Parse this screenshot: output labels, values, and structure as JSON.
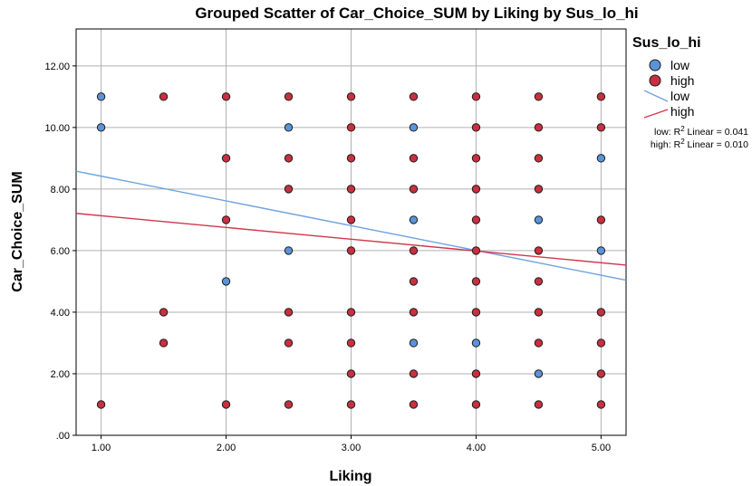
{
  "chart_data": {
    "type": "scatter",
    "title": "Grouped Scatter of Car_Choice_SUM by Liking by Sus_lo_hi",
    "xlabel": "Liking",
    "ylabel": "Car_Choice_SUM",
    "xlim": [
      0.8,
      5.2
    ],
    "ylim": [
      0,
      13.2
    ],
    "x_ticks": [
      "1.00",
      "2.00",
      "3.00",
      "4.00",
      "5.00"
    ],
    "y_ticks": [
      ".00",
      "2.00",
      "4.00",
      "6.00",
      "8.00",
      "10.00",
      "12.00"
    ],
    "grid": true,
    "legend": {
      "title": "Sus_lo_hi",
      "placement": "right",
      "markers": [
        "low",
        "high"
      ],
      "lines": [
        "low",
        "high"
      ]
    },
    "r2_labels": [
      {
        "prefix": "low: R",
        "suffix": " Linear = 0.041"
      },
      {
        "prefix": "high: R",
        "suffix": " Linear = 0.010"
      }
    ],
    "r2_superscript": "2",
    "colors": {
      "low": "#5b93d9",
      "high": "#c8303f",
      "low_line": "#6ea2e0",
      "high_line": "#d0364a"
    },
    "series": [
      {
        "name": "low",
        "points": [
          [
            1.0,
            11
          ],
          [
            1.0,
            10
          ],
          [
            2.0,
            5
          ],
          [
            2.5,
            10
          ],
          [
            2.5,
            6
          ],
          [
            3.5,
            10
          ],
          [
            3.5,
            7
          ],
          [
            3.5,
            3
          ],
          [
            4.0,
            3
          ],
          [
            4.5,
            7
          ],
          [
            4.5,
            2
          ],
          [
            5.0,
            9
          ],
          [
            5.0,
            6
          ]
        ],
        "fit": {
          "x": [
            0.8,
            5.2
          ],
          "y": [
            8.58,
            5.04
          ]
        }
      },
      {
        "name": "high",
        "points": [
          [
            1.0,
            1
          ],
          [
            1.5,
            11
          ],
          [
            1.5,
            4
          ],
          [
            1.5,
            3
          ],
          [
            2.0,
            11
          ],
          [
            2.0,
            9
          ],
          [
            2.0,
            7
          ],
          [
            2.0,
            1
          ],
          [
            2.5,
            11
          ],
          [
            2.5,
            9
          ],
          [
            2.5,
            8
          ],
          [
            2.5,
            4
          ],
          [
            2.5,
            3
          ],
          [
            2.5,
            1
          ],
          [
            3.0,
            11
          ],
          [
            3.0,
            10
          ],
          [
            3.0,
            9
          ],
          [
            3.0,
            8
          ],
          [
            3.0,
            7
          ],
          [
            3.0,
            6
          ],
          [
            3.0,
            4
          ],
          [
            3.0,
            3
          ],
          [
            3.0,
            2
          ],
          [
            3.0,
            1
          ],
          [
            3.5,
            11
          ],
          [
            3.5,
            9
          ],
          [
            3.5,
            8
          ],
          [
            3.5,
            6
          ],
          [
            3.5,
            5
          ],
          [
            3.5,
            4
          ],
          [
            3.5,
            2
          ],
          [
            3.5,
            1
          ],
          [
            4.0,
            11
          ],
          [
            4.0,
            10
          ],
          [
            4.0,
            9
          ],
          [
            4.0,
            8
          ],
          [
            4.0,
            7
          ],
          [
            4.0,
            6
          ],
          [
            4.0,
            5
          ],
          [
            4.0,
            4
          ],
          [
            4.0,
            2
          ],
          [
            4.0,
            1
          ],
          [
            4.5,
            11
          ],
          [
            4.5,
            10
          ],
          [
            4.5,
            9
          ],
          [
            4.5,
            8
          ],
          [
            4.5,
            6
          ],
          [
            4.5,
            5
          ],
          [
            4.5,
            4
          ],
          [
            4.5,
            3
          ],
          [
            4.5,
            1
          ],
          [
            5.0,
            11
          ],
          [
            5.0,
            10
          ],
          [
            5.0,
            7
          ],
          [
            5.0,
            4
          ],
          [
            5.0,
            3
          ],
          [
            5.0,
            2
          ],
          [
            5.0,
            1
          ]
        ],
        "fit": {
          "x": [
            0.8,
            5.2
          ],
          "y": [
            7.21,
            5.53
          ]
        }
      }
    ]
  }
}
